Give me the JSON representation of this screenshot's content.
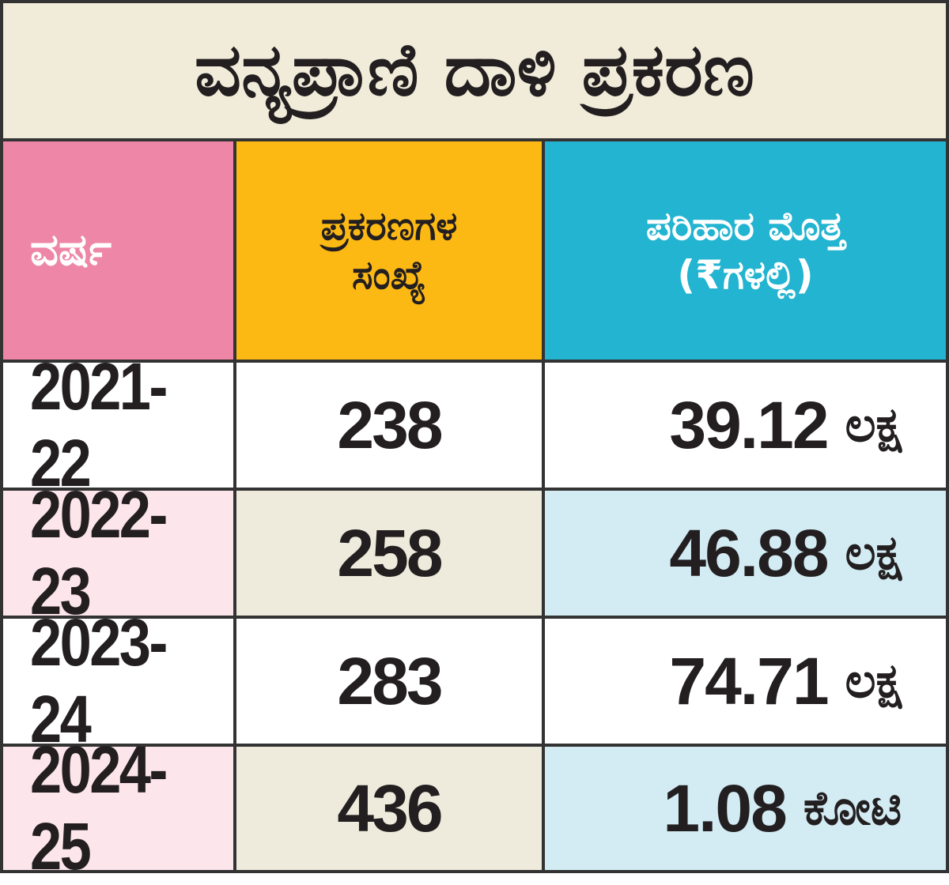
{
  "title": "ವನ್ಯಪ್ರಾಣಿ ದಾಳಿ ಪ್ರಕರಣ",
  "colors": {
    "border": "#333333",
    "title_bg": "#f1ebd9",
    "header_year_bg": "#ee87a7",
    "header_cases_bg": "#fdb913",
    "header_amount_bg": "#22b4d0",
    "row_even_year_bg": "#fce6ec",
    "row_even_cases_bg": "#efebdc",
    "row_even_amount_bg": "#d3ecf4",
    "row_odd_bg": "#ffffff",
    "text_dark": "#231f20",
    "text_light": "#ffffff"
  },
  "headers": {
    "year": "ವರ್ಷ",
    "cases_line1": "ಪ್ರಕರಣಗಳ",
    "cases_line2": "ಸಂಖ್ಯೆ",
    "amount_line1": "ಪರಿಹಾರ ಮೊತ್ತ",
    "amount_line2": "(₹ಗಳಲ್ಲಿ)"
  },
  "rows": [
    {
      "year": "2021-22",
      "cases": "238",
      "amount": "39.12",
      "unit": "ಲಕ್ಷ"
    },
    {
      "year": "2022-23",
      "cases": "258",
      "amount": "46.88",
      "unit": "ಲಕ್ಷ"
    },
    {
      "year": "2023-24",
      "cases": "283",
      "amount": "74.71",
      "unit": "ಲಕ್ಷ"
    },
    {
      "year": "2024-25",
      "cases": "436",
      "amount": "1.08",
      "unit": "ಕೋಟಿ"
    }
  ]
}
